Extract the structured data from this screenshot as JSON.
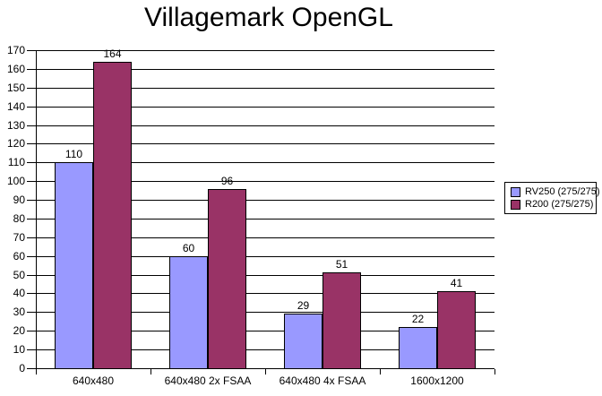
{
  "chart_data": {
    "type": "bar",
    "title": "Villagemark OpenGL",
    "categories": [
      "640x480",
      "640x480 2x FSAA",
      "640x480 4x FSAA",
      "1600x1200"
    ],
    "series": [
      {
        "name": "RV250 (275/275)",
        "color": "#9999FF",
        "values": [
          110,
          60,
          29,
          22
        ]
      },
      {
        "name": "R200 (275/275)",
        "color": "#993366",
        "values": [
          164,
          96,
          51,
          41
        ]
      }
    ],
    "value_labels": [
      [
        110,
        60,
        29,
        22
      ],
      [
        164,
        96,
        51,
        41
      ]
    ],
    "xlabel": "",
    "ylabel": "",
    "ylim": [
      0,
      170
    ],
    "ytick_step": 10,
    "grid": true,
    "legend_position": "right",
    "bar_border_color": "#000000",
    "axis_color": "#000000",
    "background_color": "#FFFFFF"
  }
}
